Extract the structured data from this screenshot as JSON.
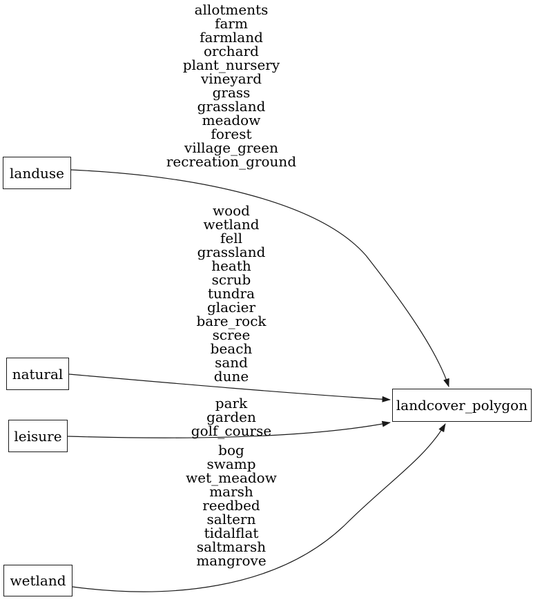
{
  "diagram": {
    "type": "graphviz-dependency-graph",
    "background_color": "#ffffff",
    "line_color": "#1a1a1a",
    "text_color": "#000000",
    "nodes": [
      {
        "id": "landuse",
        "label": "landuse"
      },
      {
        "id": "natural",
        "label": "natural"
      },
      {
        "id": "leisure",
        "label": "leisure"
      },
      {
        "id": "wetland",
        "label": "wetland"
      },
      {
        "id": "landcover_polygon",
        "label": "landcover_polygon"
      }
    ],
    "edges": [
      {
        "from": "landuse",
        "to": "landcover_polygon",
        "labels": [
          "allotments",
          "farm",
          "farmland",
          "orchard",
          "plant_nursery",
          "vineyard",
          "grass",
          "grassland",
          "meadow",
          "forest",
          "village_green",
          "recreation_ground"
        ]
      },
      {
        "from": "natural",
        "to": "landcover_polygon",
        "labels": [
          "wood",
          "wetland",
          "fell",
          "grassland",
          "heath",
          "scrub",
          "tundra",
          "glacier",
          "bare_rock",
          "scree",
          "beach",
          "sand",
          "dune"
        ]
      },
      {
        "from": "leisure",
        "to": "landcover_polygon",
        "labels": [
          "park",
          "garden",
          "golf_course"
        ]
      },
      {
        "from": "wetland",
        "to": "landcover_polygon",
        "labels": [
          "bog",
          "swamp",
          "wet_meadow",
          "marsh",
          "reedbed",
          "saltern",
          "tidalflat",
          "saltmarsh",
          "mangrove"
        ]
      }
    ]
  }
}
